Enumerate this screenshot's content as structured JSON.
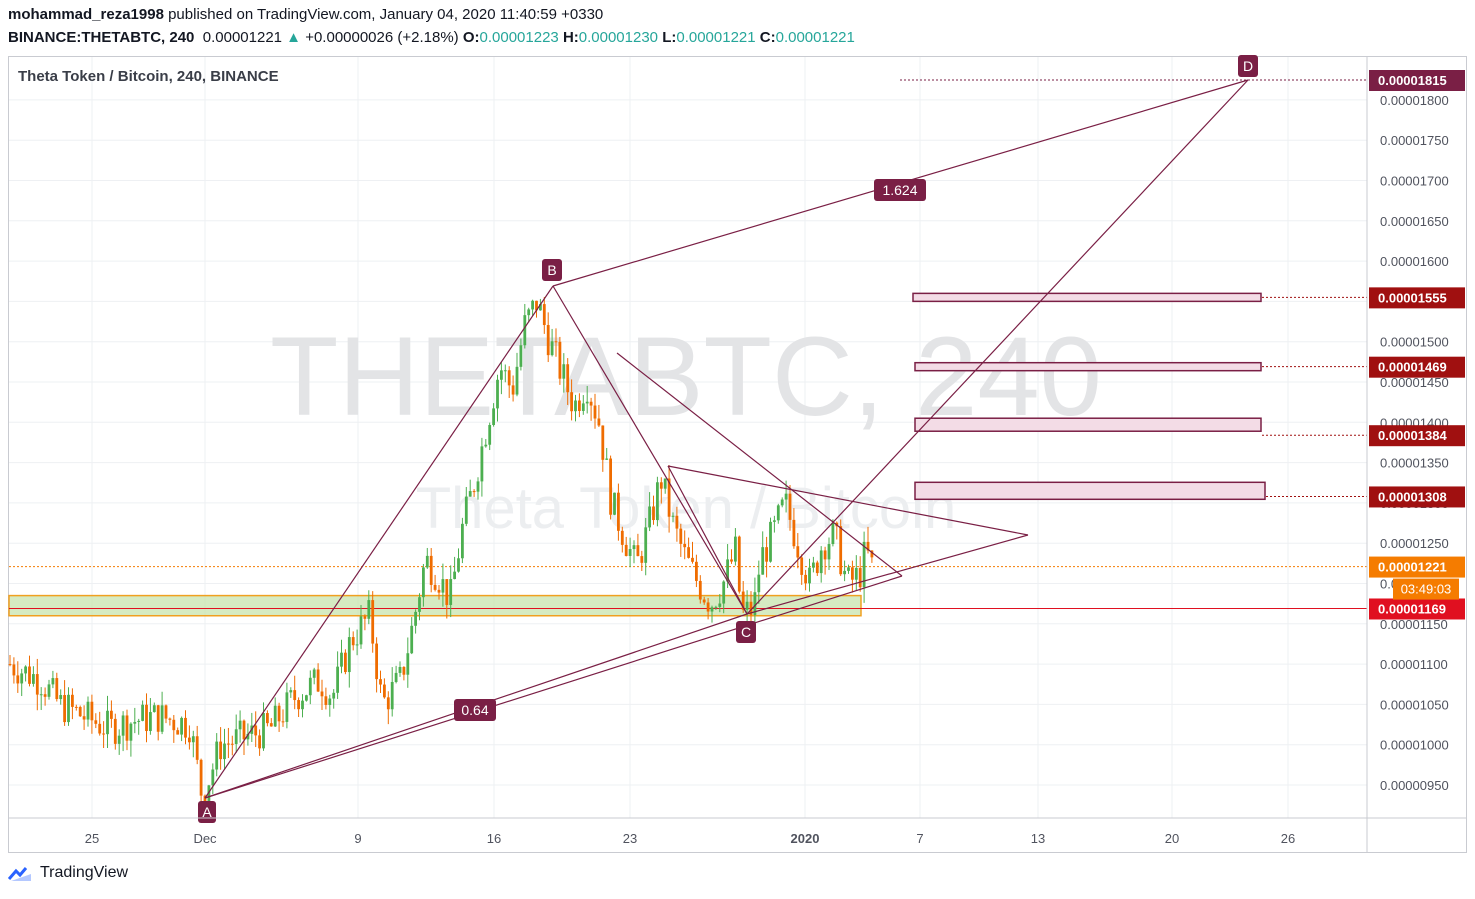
{
  "header": {
    "author": "mohammad_reza1998",
    "published_text": "published on TradingView.com, January 04, 2020 11:40:59 +0330",
    "symbol": "BINANCE:THETABTC, 240",
    "price": "0.00001221",
    "change_arrow": "▲",
    "change": "+0.00000026 (+2.18%)",
    "o_label": "O:",
    "o_value": "0.00001223",
    "h_label": "H:",
    "h_value": "0.00001230",
    "l_label": "L:",
    "l_value": "0.00001221",
    "c_label": "C:",
    "c_value": "0.00001221"
  },
  "chart": {
    "legend_title": "Theta Token / Bitcoin, 240, BINANCE",
    "watermark_main": "THETABTC, 240",
    "watermark_sub": "Theta Token / Bitcoin",
    "countdown": "03:49:03"
  },
  "chart_data": {
    "type": "candlestick",
    "title": "Theta Token / Bitcoin, 240, BINANCE",
    "x_tick_labels": [
      "25",
      "Dec",
      "9",
      "16",
      "23",
      "2020",
      "7",
      "13",
      "20",
      "26"
    ],
    "y_tick_labels": [
      "0.00000950",
      "0.00001000",
      "0.00001050",
      "0.00001100",
      "0.00001150",
      "0.00001200",
      "0.00001250",
      "0.00001300",
      "0.00001350",
      "0.00001400",
      "0.00001450",
      "0.00001500",
      "0.00001550",
      "0.00001600",
      "0.00001650",
      "0.00001700",
      "0.00001750",
      "0.00001800"
    ],
    "ylim": [
      9.1e-06,
      1.84e-05
    ],
    "price_path": [
      [
        0,
        1.1e-05
      ],
      [
        5,
        1.08e-05
      ],
      [
        8,
        1.05e-05
      ],
      [
        12,
        1.035e-05
      ],
      [
        16,
        1.02e-05
      ],
      [
        20,
        1.03e-05
      ],
      [
        24,
        1.035e-05
      ],
      [
        29,
        1.025e-05
      ],
      [
        31,
        9.35e-06
      ],
      [
        34,
        1e-05
      ],
      [
        38,
        1.01e-05
      ],
      [
        42,
        1.02e-05
      ],
      [
        46,
        1.06e-05
      ],
      [
        50,
        1.08e-05
      ],
      [
        52,
        1.06e-05
      ],
      [
        55,
        1.13e-05
      ],
      [
        58,
        1.16e-05
      ],
      [
        60,
        1.05e-05
      ],
      [
        63,
        1.08e-05
      ],
      [
        65,
        1.15e-05
      ],
      [
        67,
        1.23e-05
      ],
      [
        69,
        1.21e-05
      ],
      [
        71,
        1.18e-05
      ],
      [
        73,
        1.27e-05
      ],
      [
        75,
        1.33e-05
      ],
      [
        77,
        1.4e-05
      ],
      [
        79,
        1.47e-05
      ],
      [
        81,
        1.44e-05
      ],
      [
        83,
        1.52e-05
      ],
      [
        85,
        1.55e-05
      ],
      [
        87,
        1.5e-05
      ],
      [
        89,
        1.46e-05
      ],
      [
        91,
        1.42e-05
      ],
      [
        93,
        1.45e-05
      ],
      [
        95,
        1.4e-05
      ],
      [
        97,
        1.3e-05
      ],
      [
        99,
        1.26e-05
      ],
      [
        101,
        1.22e-05
      ],
      [
        103,
        1.27e-05
      ],
      [
        105,
        1.33e-05
      ],
      [
        107,
        1.27e-05
      ],
      [
        109,
        1.23e-05
      ],
      [
        111,
        1.2e-05
      ],
      [
        113,
        1.175e-05
      ],
      [
        115,
        1.2e-05
      ],
      [
        117,
        1.24e-05
      ],
      [
        118,
        1.16e-05
      ],
      [
        120,
        1.17e-05
      ],
      [
        121,
        1.23e-05
      ],
      [
        123,
        1.26e-05
      ],
      [
        125,
        1.3e-05
      ],
      [
        127,
        1.25e-05
      ],
      [
        129,
        1.2e-05
      ],
      [
        131,
        1.25e-05
      ],
      [
        133,
        1.26e-05
      ],
      [
        135,
        1.2e-05
      ],
      [
        137,
        1.21e-05
      ],
      [
        138,
        1.24e-05
      ],
      [
        139,
        1.221e-05
      ]
    ],
    "pattern_points": [
      {
        "label": "A",
        "date": "Dec 1",
        "price": 9.25e-06
      },
      {
        "label": "B",
        "date": "Dec 19",
        "price": 1.56e-05
      },
      {
        "label": "C",
        "date": "Dec 29",
        "price": 1.17e-05
      },
      {
        "label": "D",
        "date": "Jan 24",
        "price": 1.815e-05
      }
    ],
    "fib_ratios": [
      "0.64",
      "1.624"
    ],
    "price_levels": [
      {
        "value": "0.00001815",
        "color": "#7a1f45"
      },
      {
        "value": "0.00001555",
        "color": "#a01010"
      },
      {
        "value": "0.00001469",
        "color": "#a01010"
      },
      {
        "value": "0.00001384",
        "color": "#a01010"
      },
      {
        "value": "0.00001308",
        "color": "#a01010"
      },
      {
        "value": "0.00001221",
        "color": "#f57c00"
      },
      {
        "value": "0.00001169",
        "color": "#e01020"
      }
    ],
    "support_zone": [
      1.16e-05,
      1.185e-05
    ],
    "resistance_boxes": [
      1.555e-05,
      1.469e-05,
      1.397e-05,
      1.315e-05
    ]
  },
  "colors": {
    "up": "#26a69a",
    "candle_up": "#4caf50",
    "candle_down": "#ef6c00",
    "pattern": "#7a1f45",
    "level": "#a01010",
    "current": "#f57c00",
    "support": "#e01020"
  },
  "footer": {
    "brand": "TradingView"
  }
}
